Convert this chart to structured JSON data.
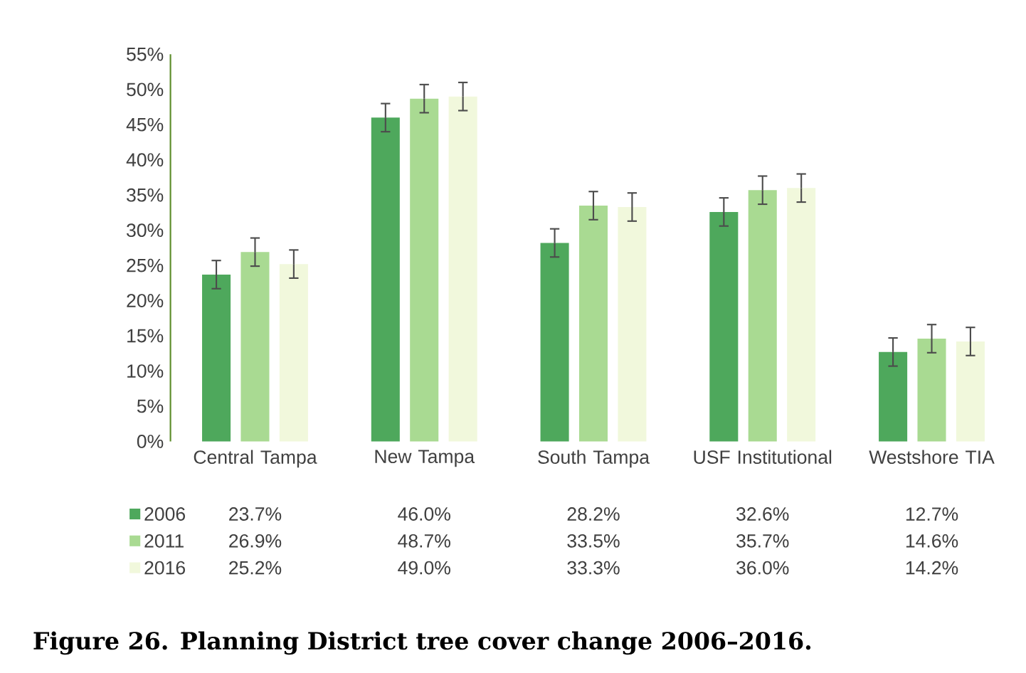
{
  "chart_data": {
    "type": "bar",
    "title": "Figure 26. Planning District tree cover change 2006–2016.",
    "categories": [
      "Central Tampa",
      "New Tampa",
      "South Tampa",
      "USF Institutional",
      "Westshore TIA"
    ],
    "series": [
      {
        "name": "2006",
        "color": "#4ea85c",
        "values": [
          23.7,
          46.0,
          28.2,
          32.6,
          12.7
        ],
        "errors": [
          2,
          2,
          2,
          2,
          2
        ],
        "value_labels": [
          "23.7%",
          "46.0%",
          "28.2%",
          "32.6%",
          "12.7%"
        ]
      },
      {
        "name": "2011",
        "color": "#a9da92",
        "values": [
          26.9,
          48.7,
          33.5,
          35.7,
          14.6
        ],
        "errors": [
          2,
          2,
          2,
          2,
          2
        ],
        "value_labels": [
          "26.9%",
          "48.7%",
          "33.5%",
          "35.7%",
          "14.6%"
        ]
      },
      {
        "name": "2016",
        "color": "#f1f8dc",
        "values": [
          25.2,
          49.0,
          33.3,
          36.0,
          14.2
        ],
        "errors": [
          2,
          2,
          2,
          2,
          2
        ],
        "value_labels": [
          "25.2%",
          "49.0%",
          "33.3%",
          "36.0%",
          "14.2%"
        ]
      }
    ],
    "ylim": [
      0,
      55
    ],
    "yticks": [
      {
        "value": 0,
        "label": "0%"
      },
      {
        "value": 5,
        "label": "5%"
      },
      {
        "value": 10,
        "label": "10%"
      },
      {
        "value": 15,
        "label": "15%"
      },
      {
        "value": 20,
        "label": "20%"
      },
      {
        "value": 25,
        "label": "25%"
      },
      {
        "value": 30,
        "label": "30%"
      },
      {
        "value": 35,
        "label": "35%"
      },
      {
        "value": 40,
        "label": "40%"
      },
      {
        "value": 45,
        "label": "45%"
      },
      {
        "value": 50,
        "label": "50%"
      },
      {
        "value": 55,
        "label": "55%"
      }
    ],
    "legend": "bottom",
    "grid": false
  }
}
